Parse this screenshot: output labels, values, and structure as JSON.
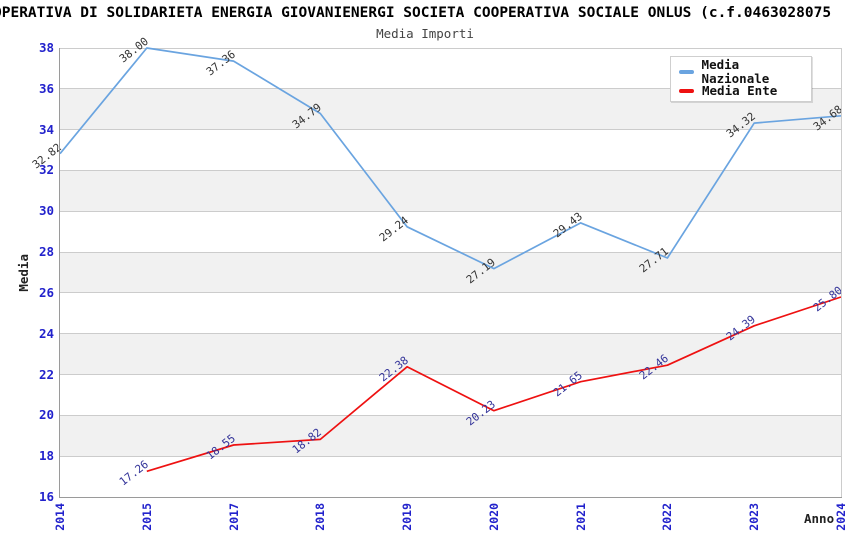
{
  "title": "OPERATIVA DI SOLIDARIETA ENERGIA GIOVANIENERGI SOCIETA COOPERATIVA SOCIALE ONLUS (c.f.0463028075",
  "subtitle": "Media Importi",
  "colors": {
    "tick_label": "#2222cc",
    "grid": "#cccccc",
    "band": "#f1f1f1",
    "axis": "#9a9a9a",
    "nazionale_line": "#6aa4e0",
    "ente_line": "#ee1111",
    "nazionale_value_label": "#333333",
    "ente_value_label": "#333399"
  },
  "chart_data": {
    "type": "line",
    "title": "Media Importi",
    "x": [
      "2014",
      "2015",
      "2017",
      "2018",
      "2019",
      "2020",
      "2021",
      "2022",
      "2023",
      "2024"
    ],
    "series": [
      {
        "name": "Media Nazionale",
        "color": "#6aa4e0",
        "label_color": "#333333",
        "values": [
          32.82,
          38.0,
          37.36,
          34.79,
          29.24,
          27.19,
          29.43,
          27.71,
          34.32,
          34.68
        ]
      },
      {
        "name": "Media Ente",
        "color": "#ee1111",
        "label_color": "#333399",
        "values": [
          null,
          17.26,
          18.55,
          18.82,
          22.38,
          20.23,
          21.65,
          22.46,
          24.39,
          25.8
        ]
      }
    ],
    "xlabel": "Anno",
    "ylabel": "Media",
    "ylim": [
      16,
      38
    ],
    "ytick_step": 2,
    "grid": true,
    "alternating_bands": true,
    "legend_position": "top-right",
    "point_labels": "two-decimals"
  }
}
